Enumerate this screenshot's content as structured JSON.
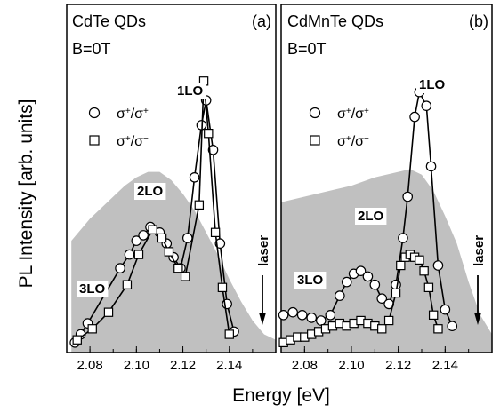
{
  "figure": {
    "ylabel": "PL Intensity [arb. units]",
    "xlabel": "Energy [eV]"
  },
  "chart_data": [
    {
      "type": "line",
      "panel": "(a)",
      "title": "CdTe QDs",
      "condition": "B=0T",
      "xlim": [
        2.07,
        2.16
      ],
      "xticks": [
        "2.08",
        "2.10",
        "2.12",
        "2.14"
      ],
      "legend": [
        "σ+/σ+",
        "σ+/σ−"
      ],
      "legend_position": "upper-left",
      "peak_labels": [
        "1LO",
        "2LO",
        "3LO"
      ],
      "laser_label": "laser",
      "laser_energy": 2.154,
      "background_area": {
        "x": [
          2.072,
          2.075,
          2.08,
          2.085,
          2.09,
          2.095,
          2.1,
          2.105,
          2.11,
          2.115,
          2.12,
          2.125,
          2.13,
          2.135,
          2.14,
          2.145,
          2.15,
          2.155,
          2.16
        ],
        "y": [
          0.39,
          0.42,
          0.47,
          0.51,
          0.55,
          0.59,
          0.62,
          0.64,
          0.64,
          0.61,
          0.56,
          0.5,
          0.42,
          0.34,
          0.25,
          0.17,
          0.1,
          0.05,
          0.03
        ]
      },
      "series": [
        {
          "name": "σ+/σ+",
          "marker": "circle",
          "x": [
            2.0735,
            2.076,
            2.079,
            2.093,
            2.097,
            2.1,
            2.103,
            2.106,
            2.11,
            2.113,
            2.116,
            2.119,
            2.122,
            2.125,
            2.128,
            2.13,
            2.133,
            2.136,
            2.139,
            2.142
          ],
          "y": [
            0.02,
            0.05,
            0.09,
            0.29,
            0.34,
            0.39,
            0.41,
            0.44,
            0.42,
            0.38,
            0.33,
            0.29,
            0.4,
            0.62,
            0.81,
            0.9,
            0.72,
            0.38,
            0.16,
            0.06
          ]
        },
        {
          "name": "σ+/σ−",
          "marker": "square",
          "x": [
            2.0745,
            2.081,
            2.088,
            2.096,
            2.101,
            2.107,
            2.111,
            2.114,
            2.118,
            2.121,
            2.127,
            2.129,
            2.131,
            2.134,
            2.137,
            2.14
          ],
          "y": [
            0.03,
            0.07,
            0.13,
            0.23,
            0.34,
            0.43,
            0.4,
            0.35,
            0.29,
            0.26,
            0.52,
            0.97,
            0.78,
            0.42,
            0.22,
            0.05
          ]
        }
      ]
    },
    {
      "type": "line",
      "panel": "(b)",
      "title": "CdMnTe QDs",
      "condition": "B=0T",
      "xlim": [
        2.07,
        2.16
      ],
      "xticks": [
        "2.08",
        "2.10",
        "2.12",
        "2.14"
      ],
      "legend": [
        "σ+/σ+",
        "σ+/σ−"
      ],
      "legend_position": "upper-left",
      "peak_labels": [
        "1LO",
        "2LO",
        "3LO"
      ],
      "laser_label": "laser",
      "laser_energy": 2.154,
      "background_area": {
        "x": [
          2.07,
          2.08,
          2.09,
          2.1,
          2.11,
          2.12,
          2.125,
          2.13,
          2.135,
          2.14,
          2.145,
          2.15,
          2.155,
          2.16
        ],
        "y": [
          0.53,
          0.55,
          0.57,
          0.59,
          0.62,
          0.64,
          0.65,
          0.63,
          0.57,
          0.48,
          0.38,
          0.24,
          0.12,
          0.05
        ]
      },
      "series": [
        {
          "name": "σ+/σ+",
          "marker": "circle",
          "x": [
            2.071,
            2.075,
            2.079,
            2.083,
            2.087,
            2.091,
            2.095,
            2.098,
            2.101,
            2.104,
            2.107,
            2.11,
            2.113,
            2.116,
            2.119,
            2.122,
            2.124,
            2.127,
            2.129,
            2.132,
            2.134,
            2.137,
            2.14,
            2.143
          ],
          "y": [
            0.12,
            0.13,
            0.12,
            0.11,
            0.1,
            0.12,
            0.19,
            0.24,
            0.27,
            0.28,
            0.26,
            0.23,
            0.18,
            0.16,
            0.23,
            0.4,
            0.55,
            0.84,
            0.93,
            0.88,
            0.66,
            0.3,
            0.14,
            0.08
          ]
        },
        {
          "name": "σ+/σ−",
          "marker": "square",
          "x": [
            2.071,
            2.074,
            2.077,
            2.08,
            2.083,
            2.086,
            2.089,
            2.092,
            2.095,
            2.098,
            2.101,
            2.104,
            2.107,
            2.11,
            2.113,
            2.116,
            2.119,
            2.121,
            2.123,
            2.125,
            2.127,
            2.129,
            2.131,
            2.133,
            2.135,
            2.137
          ],
          "y": [
            0.02,
            0.03,
            0.04,
            0.04,
            0.05,
            0.06,
            0.07,
            0.08,
            0.09,
            0.08,
            0.09,
            0.1,
            0.09,
            0.08,
            0.07,
            0.1,
            0.2,
            0.3,
            0.33,
            0.34,
            0.33,
            0.32,
            0.28,
            0.22,
            0.12,
            0.07
          ]
        }
      ]
    }
  ]
}
